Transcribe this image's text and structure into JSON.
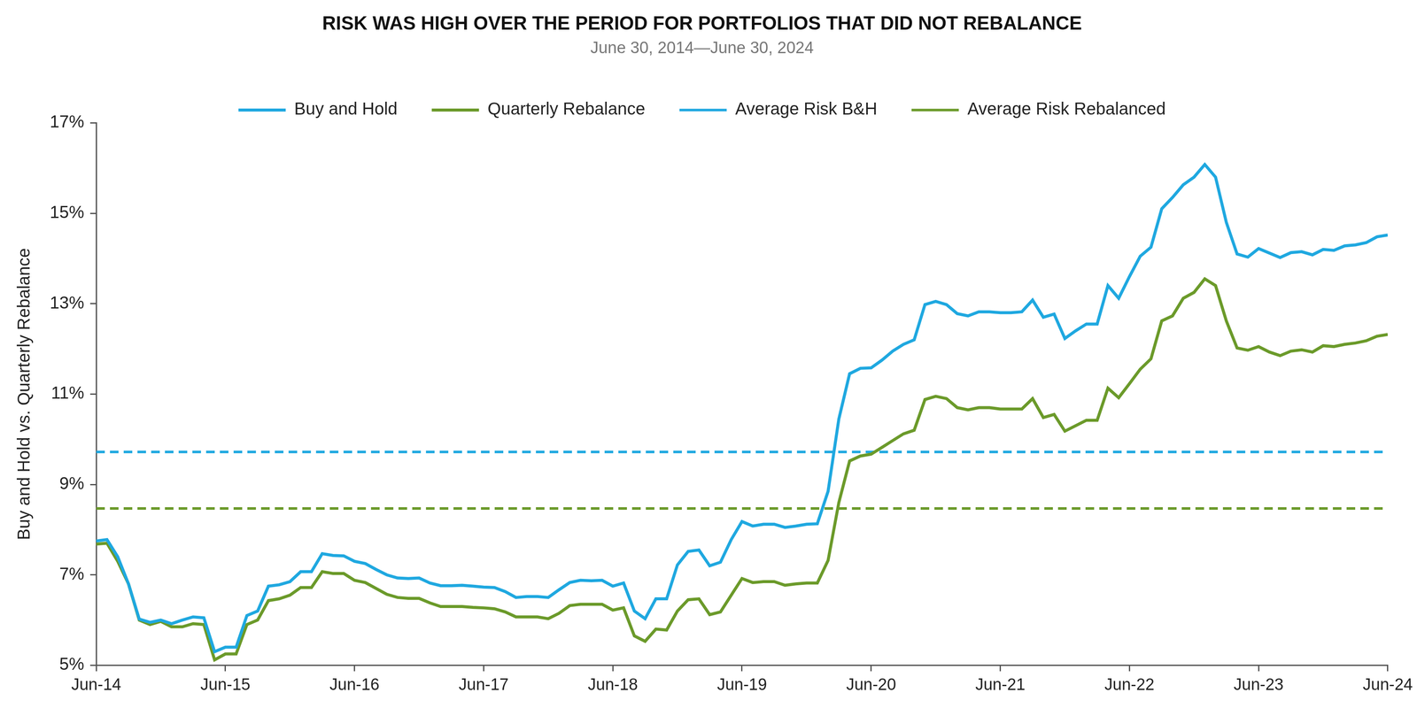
{
  "chart_data": {
    "type": "line",
    "title": "RISK WAS HIGH OVER THE PERIOD FOR PORTFOLIOS THAT DID NOT REBALANCE",
    "subtitle": "June 30, 2014—June 30, 2024",
    "y_label": "Buy and Hold vs. Quarterly Rebalance",
    "categories": [
      "Jun-14",
      null,
      null,
      null,
      null,
      null,
      null,
      null,
      null,
      null,
      null,
      null,
      "Jun-15",
      null,
      null,
      null,
      null,
      null,
      null,
      null,
      null,
      null,
      null,
      null,
      "Jun-16",
      null,
      null,
      null,
      null,
      null,
      null,
      null,
      null,
      null,
      null,
      null,
      "Jun-17",
      null,
      null,
      null,
      null,
      null,
      null,
      null,
      null,
      null,
      null,
      null,
      "Jun-18",
      null,
      null,
      null,
      null,
      null,
      null,
      null,
      null,
      null,
      null,
      null,
      "Jun-19",
      null,
      null,
      null,
      null,
      null,
      null,
      null,
      null,
      null,
      null,
      null,
      "Jun-20",
      null,
      null,
      null,
      null,
      null,
      null,
      null,
      null,
      null,
      null,
      null,
      "Jun-21",
      null,
      null,
      null,
      null,
      null,
      null,
      null,
      null,
      null,
      null,
      null,
      "Jun-22",
      null,
      null,
      null,
      null,
      null,
      null,
      null,
      null,
      null,
      null,
      null,
      "Jun-23",
      null,
      null,
      null,
      null,
      null,
      null,
      null,
      null,
      null,
      null,
      null,
      "Jun-24"
    ],
    "ylim": [
      5,
      17
    ],
    "yticks": [
      {
        "value": 5,
        "label": "5%"
      },
      {
        "value": 7,
        "label": "7%"
      },
      {
        "value": 9,
        "label": "9%"
      },
      {
        "value": 11,
        "label": "11%"
      },
      {
        "value": 13,
        "label": "13%"
      },
      {
        "value": 15,
        "label": "15%"
      },
      {
        "value": 17,
        "label": "17%"
      }
    ],
    "grid": false,
    "legend": "top",
    "series": [
      {
        "name": "Buy and Hold",
        "color": "#1fa8e0",
        "marker": "none",
        "line_style": "solid",
        "values": [
          7.75,
          7.78,
          7.4,
          6.8,
          6.02,
          5.95,
          6.0,
          5.92,
          6.0,
          6.07,
          6.05,
          5.3,
          5.4,
          5.4,
          6.1,
          6.2,
          6.75,
          6.78,
          6.85,
          7.07,
          7.07,
          7.47,
          7.43,
          7.42,
          7.3,
          7.25,
          7.12,
          7.0,
          6.93,
          6.92,
          6.93,
          6.82,
          6.76,
          6.76,
          6.77,
          6.75,
          6.73,
          6.72,
          6.63,
          6.5,
          6.52,
          6.52,
          6.5,
          6.67,
          6.83,
          6.88,
          6.87,
          6.88,
          6.75,
          6.82,
          6.2,
          6.03,
          6.47,
          6.47,
          7.22,
          7.52,
          7.55,
          7.2,
          7.28,
          7.78,
          8.18,
          8.08,
          8.12,
          8.12,
          8.05,
          8.08,
          8.12,
          8.13,
          8.85,
          10.45,
          11.45,
          11.57,
          11.58,
          11.75,
          11.95,
          12.1,
          12.2,
          12.98,
          13.05,
          12.98,
          12.78,
          12.73,
          12.82,
          12.82,
          12.8,
          12.8,
          12.82,
          13.08,
          12.7,
          12.77,
          12.23,
          12.4,
          12.55,
          12.55,
          13.4,
          13.12,
          13.6,
          14.05,
          14.25,
          15.1,
          15.35,
          15.63,
          15.8,
          16.08,
          15.8,
          14.8,
          14.1,
          14.03,
          14.22,
          14.12,
          14.02,
          14.13,
          14.15,
          14.08,
          14.2,
          14.18,
          14.28,
          14.3,
          14.35,
          14.48,
          14.52
        ]
      },
      {
        "name": "Quarterly Rebalance",
        "color": "#6b9a2a",
        "marker": "none",
        "line_style": "solid",
        "values": [
          7.68,
          7.7,
          7.3,
          6.8,
          6.0,
          5.9,
          5.97,
          5.85,
          5.85,
          5.92,
          5.9,
          5.12,
          5.25,
          5.25,
          5.9,
          6.0,
          6.43,
          6.47,
          6.55,
          6.72,
          6.72,
          7.07,
          7.03,
          7.03,
          6.88,
          6.83,
          6.7,
          6.57,
          6.5,
          6.48,
          6.48,
          6.38,
          6.3,
          6.3,
          6.3,
          6.28,
          6.27,
          6.25,
          6.18,
          6.07,
          6.07,
          6.07,
          6.03,
          6.15,
          6.32,
          6.35,
          6.35,
          6.35,
          6.22,
          6.27,
          5.65,
          5.53,
          5.8,
          5.78,
          6.2,
          6.45,
          6.47,
          6.12,
          6.18,
          6.55,
          6.92,
          6.83,
          6.85,
          6.85,
          6.77,
          6.8,
          6.82,
          6.82,
          7.32,
          8.6,
          9.52,
          9.63,
          9.67,
          9.82,
          9.97,
          10.12,
          10.2,
          10.88,
          10.95,
          10.9,
          10.7,
          10.65,
          10.7,
          10.7,
          10.67,
          10.67,
          10.67,
          10.9,
          10.48,
          10.55,
          10.18,
          10.3,
          10.42,
          10.42,
          11.13,
          10.92,
          11.23,
          11.55,
          11.78,
          12.62,
          12.73,
          13.12,
          13.25,
          13.55,
          13.4,
          12.62,
          12.02,
          11.97,
          12.05,
          11.93,
          11.85,
          11.95,
          11.98,
          11.93,
          12.07,
          12.05,
          12.1,
          12.13,
          12.18,
          12.28,
          12.32
        ]
      },
      {
        "name": "Average Risk B&H",
        "color": "#1fa8e0",
        "marker": "none",
        "line_style": "dashed",
        "values": [
          9.72,
          9.72,
          9.72,
          9.72,
          9.72,
          9.72,
          9.72,
          9.72,
          9.72,
          9.72,
          9.72,
          9.72,
          9.72,
          9.72,
          9.72,
          9.72,
          9.72,
          9.72,
          9.72,
          9.72,
          9.72,
          9.72,
          9.72,
          9.72,
          9.72,
          9.72,
          9.72,
          9.72,
          9.72,
          9.72,
          9.72,
          9.72,
          9.72,
          9.72,
          9.72,
          9.72,
          9.72,
          9.72,
          9.72,
          9.72,
          9.72,
          9.72,
          9.72,
          9.72,
          9.72,
          9.72,
          9.72,
          9.72,
          9.72,
          9.72,
          9.72,
          9.72,
          9.72,
          9.72,
          9.72,
          9.72,
          9.72,
          9.72,
          9.72,
          9.72,
          9.72,
          9.72,
          9.72,
          9.72,
          9.72,
          9.72,
          9.72,
          9.72,
          9.72,
          9.72,
          9.72,
          9.72,
          9.72,
          9.72,
          9.72,
          9.72,
          9.72,
          9.72,
          9.72,
          9.72,
          9.72,
          9.72,
          9.72,
          9.72,
          9.72,
          9.72,
          9.72,
          9.72,
          9.72,
          9.72,
          9.72,
          9.72,
          9.72,
          9.72,
          9.72,
          9.72,
          9.72,
          9.72,
          9.72,
          9.72,
          9.72,
          9.72,
          9.72,
          9.72,
          9.72,
          9.72,
          9.72,
          9.72,
          9.72,
          9.72,
          9.72,
          9.72,
          9.72,
          9.72,
          9.72,
          9.72,
          9.72,
          9.72,
          9.72,
          9.72,
          9.72
        ]
      },
      {
        "name": "Average Risk Rebalanced",
        "color": "#6b9a2a",
        "marker": "none",
        "line_style": "dashed",
        "values": [
          8.47,
          8.47,
          8.47,
          8.47,
          8.47,
          8.47,
          8.47,
          8.47,
          8.47,
          8.47,
          8.47,
          8.47,
          8.47,
          8.47,
          8.47,
          8.47,
          8.47,
          8.47,
          8.47,
          8.47,
          8.47,
          8.47,
          8.47,
          8.47,
          8.47,
          8.47,
          8.47,
          8.47,
          8.47,
          8.47,
          8.47,
          8.47,
          8.47,
          8.47,
          8.47,
          8.47,
          8.47,
          8.47,
          8.47,
          8.47,
          8.47,
          8.47,
          8.47,
          8.47,
          8.47,
          8.47,
          8.47,
          8.47,
          8.47,
          8.47,
          8.47,
          8.47,
          8.47,
          8.47,
          8.47,
          8.47,
          8.47,
          8.47,
          8.47,
          8.47,
          8.47,
          8.47,
          8.47,
          8.47,
          8.47,
          8.47,
          8.47,
          8.47,
          8.47,
          8.47,
          8.47,
          8.47,
          8.47,
          8.47,
          8.47,
          8.47,
          8.47,
          8.47,
          8.47,
          8.47,
          8.47,
          8.47,
          8.47,
          8.47,
          8.47,
          8.47,
          8.47,
          8.47,
          8.47,
          8.47,
          8.47,
          8.47,
          8.47,
          8.47,
          8.47,
          8.47,
          8.47,
          8.47,
          8.47,
          8.47,
          8.47,
          8.47,
          8.47,
          8.47,
          8.47,
          8.47,
          8.47,
          8.47,
          8.47,
          8.47,
          8.47,
          8.47,
          8.47,
          8.47,
          8.47,
          8.47,
          8.47,
          8.47,
          8.47,
          8.47,
          8.47
        ]
      }
    ]
  }
}
